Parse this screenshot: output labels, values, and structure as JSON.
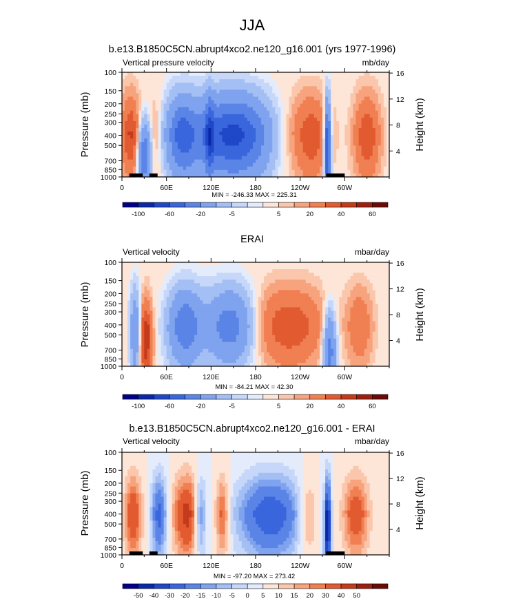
{
  "figure_title": "JJA",
  "chart_data": [
    {
      "type": "heatmap",
      "title": "b.e13.B1850C5CN.abrupt4xco2.ne120_g16.001 (yrs 1977-1996)",
      "left_label": "Vertical pressure velocity",
      "units": "mb/day",
      "ylabel": "Pressure (mb)",
      "ylabel_right": "Height (km)",
      "pressure_ticks": [
        "100",
        "150",
        "200",
        "250",
        "300",
        "400",
        "500",
        "700",
        "850",
        "1000"
      ],
      "height_ticks": [
        "16",
        "12",
        "8",
        "4"
      ],
      "lon_ticks": [
        "0",
        "60E",
        "120E",
        "180",
        "120W",
        "60W"
      ],
      "stats": "MIN = -246.33  MAX = 225.31",
      "colorbar_labels": [
        "-100",
        "-60",
        "-20",
        "-5",
        "5",
        "20",
        "40",
        "60"
      ],
      "levels": [
        -120,
        -100,
        -80,
        -60,
        -40,
        -20,
        -10,
        -5,
        -2,
        2,
        5,
        10,
        20,
        30,
        40,
        50,
        60
      ],
      "field_description": "Ascent (blue) over Indian Ocean/West Pacific (~60E-180) and near 100W; descent (red) elsewhere"
    },
    {
      "type": "heatmap",
      "title": "ERAI",
      "left_label": "Vertical velocity",
      "units": "mbar/day",
      "ylabel": "Pressure (mb)",
      "ylabel_right": "Height (km)",
      "pressure_ticks": [
        "100",
        "150",
        "200",
        "250",
        "300",
        "400",
        "500",
        "700",
        "850",
        "1000"
      ],
      "height_ticks": [
        "16",
        "12",
        "8",
        "4"
      ],
      "lon_ticks": [
        "0",
        "60E",
        "120E",
        "180",
        "120W",
        "60W"
      ],
      "stats": "MIN = -84.21  MAX = 42.30",
      "colorbar_labels": [
        "-100",
        "-60",
        "-20",
        "-5",
        "5",
        "20",
        "40",
        "60"
      ],
      "levels": [
        -120,
        -100,
        -80,
        -60,
        -40,
        -20,
        -10,
        -5,
        -2,
        2,
        5,
        10,
        20,
        30,
        40,
        50,
        60
      ]
    },
    {
      "type": "heatmap",
      "title": "b.e13.B1850C5CN.abrupt4xco2.ne120_g16.001 - ERAI",
      "left_label": "Vertical velocity",
      "units": "mbar/day",
      "ylabel": "Pressure (mb)",
      "ylabel_right": "Height (km)",
      "pressure_ticks": [
        "100",
        "150",
        "200",
        "250",
        "300",
        "400",
        "500",
        "700",
        "850",
        "1000"
      ],
      "height_ticks": [
        "16",
        "12",
        "8",
        "4"
      ],
      "lon_ticks": [
        "0",
        "60E",
        "120E",
        "180",
        "120W",
        "60W"
      ],
      "stats": "MIN = -97.20  MAX = 273.42",
      "colorbar_labels": [
        "-50",
        "-40",
        "-30",
        "-20",
        "-15",
        "-10",
        "-5",
        "0",
        "5",
        "10",
        "15",
        "20",
        "30",
        "40",
        "50"
      ],
      "levels": [
        -60,
        -50,
        -40,
        -30,
        -20,
        -15,
        -10,
        -5,
        0,
        5,
        10,
        15,
        20,
        30,
        40,
        50,
        60
      ]
    }
  ],
  "palette": [
    "#00008a",
    "#0a28a8",
    "#1f47c8",
    "#3a66dd",
    "#5a84e6",
    "#7fa3ee",
    "#a3bff4",
    "#c6d7f9",
    "#e4ecfc",
    "#fde5d8",
    "#fbc7ac",
    "#f7a47e",
    "#f07f52",
    "#e25a30",
    "#c43a1a",
    "#9e1f0e",
    "#6e0a05"
  ]
}
